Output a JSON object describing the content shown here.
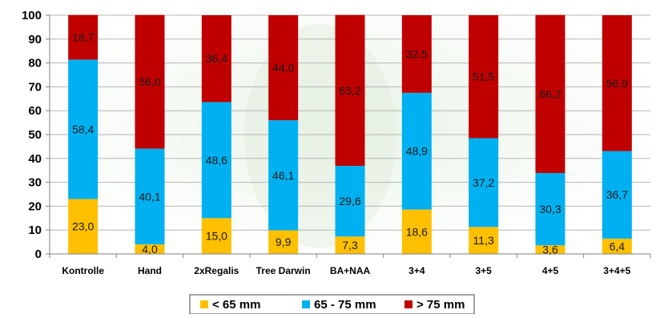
{
  "chart_data": {
    "type": "bar",
    "stacked": true,
    "categories": [
      "Kontrolle",
      "Hand",
      "2xRegalis",
      "Tree Darwin",
      "BA+NAA",
      "3+4",
      "3+5",
      "4+5",
      "3+4+5"
    ],
    "series": [
      {
        "name": "< 65 mm",
        "color": "#FFC000",
        "values": [
          23.0,
          4.0,
          15.0,
          9.9,
          7.3,
          18.6,
          11.3,
          3.6,
          6.4
        ],
        "labels": [
          "23,0",
          "4,0",
          "15,0",
          "9,9",
          "7,3",
          "18,6",
          "11,3",
          "3,6",
          "6,4"
        ]
      },
      {
        "name": "65 - 75 mm",
        "color": "#00B0F0",
        "values": [
          58.4,
          40.1,
          48.6,
          46.1,
          29.6,
          48.9,
          37.2,
          30.3,
          36.7
        ],
        "labels": [
          "58,4",
          "40,1",
          "48,6",
          "46,1",
          "29,6",
          "48,9",
          "37,2",
          "30,3",
          "36,7"
        ]
      },
      {
        "name": "> 75 mm",
        "color": "#C00000",
        "values": [
          18.7,
          56.0,
          36.4,
          44.0,
          63.2,
          32.5,
          51.5,
          66.2,
          56.9
        ],
        "labels": [
          "18,7",
          "56,0",
          "36,4",
          "44,0",
          "63,2",
          "32,5",
          "51,5",
          "66,2",
          "56,9"
        ]
      }
    ],
    "yticks": [
      "0",
      "10",
      "20",
      "30",
      "40",
      "50",
      "60",
      "70",
      "80",
      "90",
      "100"
    ],
    "ylim": [
      0,
      100
    ],
    "grid": true,
    "legend_position": "bottom"
  }
}
